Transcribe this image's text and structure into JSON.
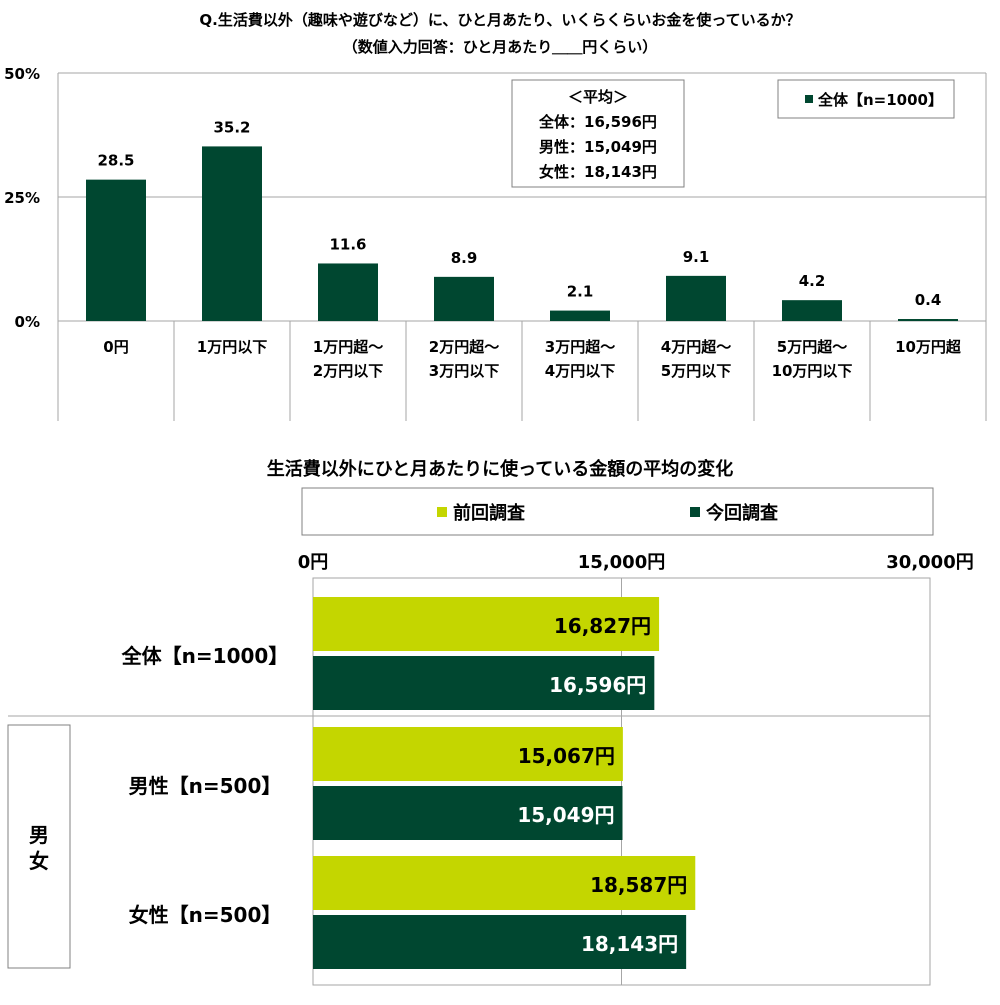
{
  "colors": {
    "current": "#004730",
    "previous": "#c4d600",
    "grid": "#a6a6a6"
  },
  "chart_data": [
    {
      "type": "bar",
      "title": "Q.生活費以外（趣味や遊びなど）に、ひと月あたり、いくらくらいお金を使っているか？",
      "subtitle": "（数値入力回答：ひと月あたり＿＿円くらい）",
      "categories": [
        [
          "0円"
        ],
        [
          "1万円以下"
        ],
        [
          "1万円超～",
          "2万円以下"
        ],
        [
          "2万円超～",
          "3万円以下"
        ],
        [
          "3万円超～",
          "4万円以下"
        ],
        [
          "4万円超～",
          "5万円以下"
        ],
        [
          "5万円超～",
          "10万円以下"
        ],
        [
          "10万円超"
        ]
      ],
      "series": [
        {
          "name": "全体【n=1000】",
          "values": [
            28.5,
            35.2,
            11.6,
            8.9,
            2.1,
            9.1,
            4.2,
            0.4
          ]
        }
      ],
      "value_labels": [
        "28.5",
        "35.2",
        "11.6",
        "8.9",
        "2.1",
        "9.1",
        "4.2",
        "0.4"
      ],
      "ylim": [
        0,
        50
      ],
      "yticks": [
        "0%",
        "25%",
        "50%"
      ],
      "ytick_values": [
        0,
        25,
        50
      ],
      "grid": true,
      "legend": "top-right",
      "legend_label": "全体【n=1000】",
      "annotation": {
        "heading": "＜平均＞",
        "lines": [
          "全体：16,596円",
          "男性：15,049円",
          "女性：18,143円"
        ]
      }
    },
    {
      "type": "bar",
      "orientation": "horizontal",
      "title": "生活費以外にひと月あたりに使っている金額の平均の変化",
      "legend": "top",
      "series_names": [
        "前回調査",
        "今回調査"
      ],
      "xlim": [
        0,
        30000
      ],
      "xticks": [
        "0円",
        "15,000円",
        "30,000円"
      ],
      "xtick_values": [
        0,
        15000,
        30000
      ],
      "group_label": "男女",
      "rows": [
        {
          "label": "全体【n=1000】",
          "previous": 16827,
          "current": 16596,
          "previous_label": "16,827円",
          "current_label": "16,596円"
        },
        {
          "label": "男性【n=500】",
          "previous": 15067,
          "current": 15049,
          "previous_label": "15,067円",
          "current_label": "15,049円"
        },
        {
          "label": "女性【n=500】",
          "previous": 18587,
          "current": 18143,
          "previous_label": "18,587円",
          "current_label": "18,143円"
        }
      ]
    }
  ]
}
